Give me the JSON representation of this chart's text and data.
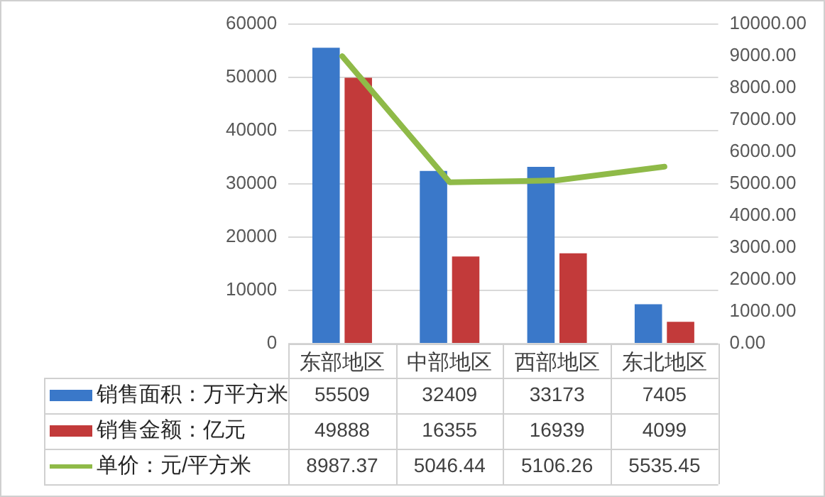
{
  "chart_data": {
    "type": "bar",
    "categories": [
      "东部地区",
      "中部地区",
      "西部地区",
      "东北地区"
    ],
    "series": [
      {
        "name": "销售面积：万平方米",
        "color": "#3a78c9",
        "values": [
          55509,
          32409,
          33173,
          7405
        ]
      },
      {
        "name": "销售金额：亿元",
        "color": "#c23a3a",
        "values": [
          49888,
          16355,
          16939,
          4099
        ]
      },
      {
        "name": "单价：元/平方米",
        "type": "line",
        "axis": "y2",
        "color": "#8fba48",
        "values": [
          8987.37,
          5046.44,
          5106.26,
          5535.45
        ]
      }
    ],
    "ylim": [
      0,
      60000
    ],
    "yticks": [
      0,
      10000,
      20000,
      30000,
      40000,
      50000,
      60000
    ],
    "y2lim": [
      0,
      10000
    ],
    "y2ticks": [
      {
        "value": 0,
        "label": "0.00"
      },
      {
        "value": 1000,
        "label": "1000.00"
      },
      {
        "value": 2000,
        "label": "2000.00"
      },
      {
        "value": 3000,
        "label": "3000.00"
      },
      {
        "value": 4000,
        "label": "4000.00"
      },
      {
        "value": 5000,
        "label": "5000.00"
      },
      {
        "value": 6000,
        "label": "6000.00"
      },
      {
        "value": 7000,
        "label": "7000.00"
      },
      {
        "value": 8000,
        "label": "8000.00"
      },
      {
        "value": 9000,
        "label": "9000.00"
      },
      {
        "value": 10000,
        "label": "10000.00"
      }
    ],
    "grid": "y",
    "legend": "bottom",
    "marker": "none",
    "data_labels": true
  }
}
